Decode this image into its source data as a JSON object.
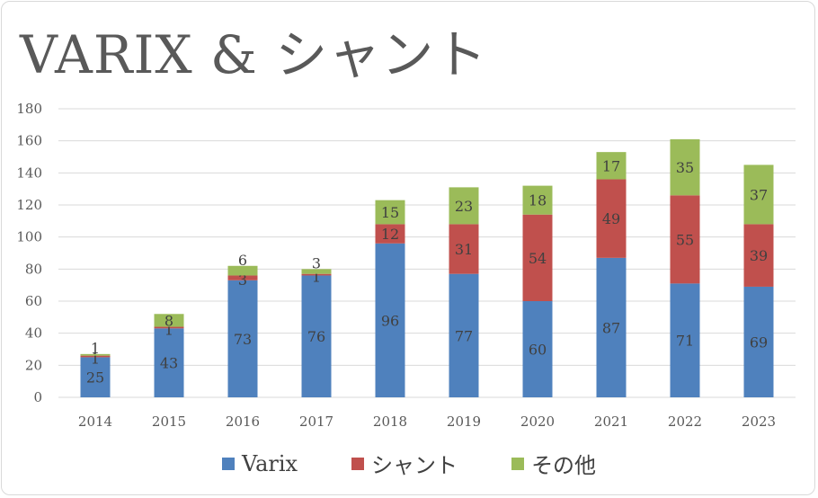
{
  "chart_data": {
    "type": "bar",
    "stacked": true,
    "title": "VARIX & シャント",
    "categories": [
      "2014",
      "2015",
      "2016",
      "2017",
      "2018",
      "2019",
      "2020",
      "2021",
      "2022",
      "2023"
    ],
    "series": [
      {
        "name": "Varix",
        "color": "#4f81bd",
        "values": [
          25,
          43,
          73,
          76,
          96,
          77,
          60,
          87,
          71,
          69
        ]
      },
      {
        "name": "シャント",
        "color": "#c0504d",
        "values": [
          1,
          1,
          3,
          1,
          12,
          31,
          54,
          49,
          55,
          39
        ]
      },
      {
        "name": "その他",
        "color": "#9bbb59",
        "values": [
          1,
          8,
          6,
          3,
          15,
          23,
          18,
          17,
          35,
          37
        ]
      }
    ],
    "yticks": [
      "0",
      "20",
      "40",
      "60",
      "80",
      "100",
      "120",
      "140",
      "160",
      "180"
    ],
    "ylim": [
      0,
      180
    ],
    "xlabel": "",
    "ylabel": "",
    "grid": true,
    "legend_position": "bottom"
  }
}
